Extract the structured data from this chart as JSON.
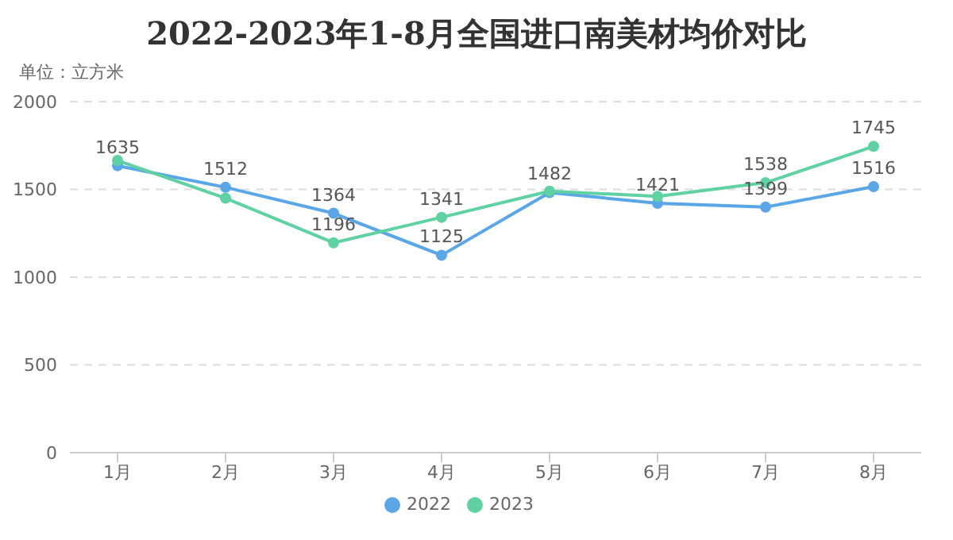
{
  "chart_data": {
    "type": "line",
    "title": "2022-2023年1-8月全国进口南美材均价对比",
    "ylabel": "单位：立方米",
    "categories": [
      "1月",
      "2月",
      "3月",
      "4月",
      "5月",
      "6月",
      "7月",
      "8月"
    ],
    "series": [
      {
        "name": "2022",
        "color": "#5aa6e6",
        "values": [
          1635,
          1512,
          1364,
          1125,
          1482,
          1421,
          1399,
          1516
        ],
        "value_labels": [
          "1635",
          "1512",
          "1364",
          "1125",
          "1482",
          "1421",
          "1399",
          "1516"
        ]
      },
      {
        "name": "2023",
        "color": "#5fd1a2",
        "values": [
          1665,
          1450,
          1196,
          1341,
          1490,
          1460,
          1538,
          1745
        ],
        "value_labels": [
          null,
          null,
          "1196",
          "1341",
          null,
          null,
          "1538",
          "1745"
        ]
      }
    ],
    "ylim": [
      0,
      2000
    ],
    "yticks": [
      0,
      500,
      1000,
      1500,
      2000
    ],
    "grid": "y",
    "legend": "bottom",
    "marker": "circle",
    "line_style": "solid"
  }
}
